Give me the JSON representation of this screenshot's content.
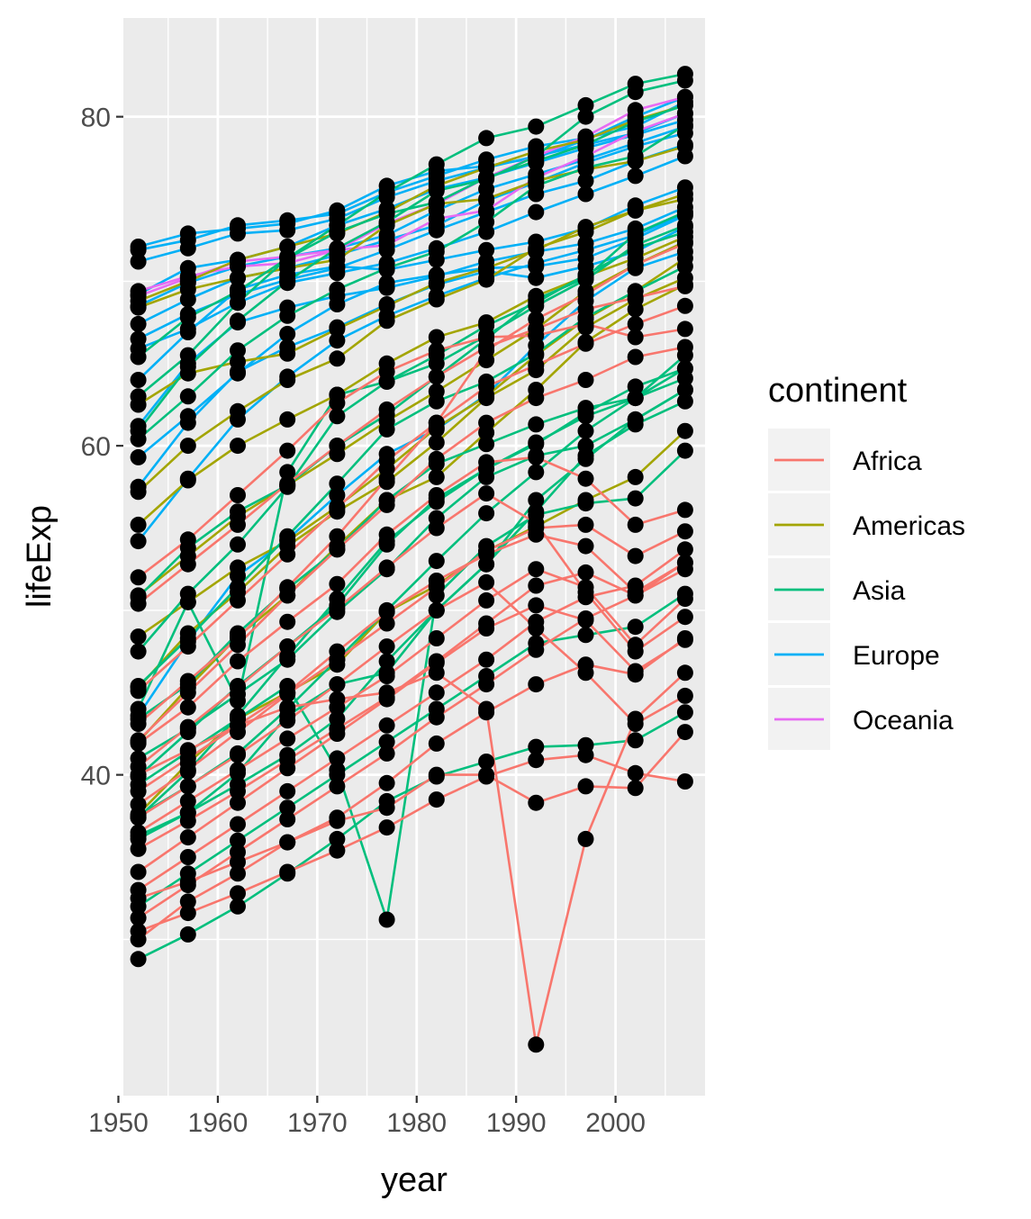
{
  "chart_data": {
    "type": "line",
    "xlabel": "year",
    "ylabel": "lifeExp",
    "xlim": [
      1950.5,
      2009
    ],
    "ylim": [
      20.5,
      86
    ],
    "x_ticks": [
      1950,
      1960,
      1970,
      1980,
      1990,
      2000
    ],
    "x_tick_labels": [
      "1950",
      "1960",
      "1970",
      "1980",
      "1990",
      "2000"
    ],
    "y_ticks": [
      40,
      60,
      80
    ],
    "y_tick_labels": [
      "40",
      "60",
      "80"
    ],
    "grid": true,
    "legend": {
      "title": "continent",
      "placement": "right",
      "entries": [
        "Africa",
        "Americas",
        "Asia",
        "Europe",
        "Oceania"
      ]
    },
    "colors": {
      "Africa": "#F8766D",
      "Americas": "#A3A500",
      "Asia": "#00BF7D",
      "Europe": "#00B0F6",
      "Oceania": "#E76BF3",
      "points": "#000000",
      "panel": "#EBEBEB",
      "grid": "#FFFFFF"
    },
    "x": [
      1952,
      1957,
      1962,
      1967,
      1972,
      1977,
      1982,
      1987,
      1992,
      1997,
      2002,
      2007
    ],
    "series": [
      {
        "continent": "Europe",
        "values": [
          72.1,
          72.9,
          73.2,
          73.5,
          74.3,
          75.8,
          76.7,
          77.0,
          77.5,
          78.6,
          80.0,
          81.2
        ]
      },
      {
        "continent": "Europe",
        "values": [
          71.9,
          72.5,
          73.4,
          73.7,
          74.1,
          75.4,
          76.4,
          77.4,
          78.2,
          78.7,
          79.4,
          80.9
        ]
      },
      {
        "continent": "Europe",
        "values": [
          71.2,
          72.0,
          72.9,
          73.1,
          73.8,
          75.1,
          76.1,
          76.9,
          77.6,
          78.3,
          79.0,
          80.2
        ]
      },
      {
        "continent": "Europe",
        "values": [
          69.2,
          70.8,
          71.3,
          72.1,
          73.4,
          74.4,
          75.6,
          76.3,
          77.2,
          78.1,
          78.9,
          79.8
        ]
      },
      {
        "continent": "Europe",
        "values": [
          68.5,
          69.9,
          70.9,
          71.5,
          72.0,
          72.8,
          74.3,
          75.6,
          76.5,
          77.4,
          78.4,
          79.4
        ]
      },
      {
        "continent": "Europe",
        "values": [
          67.4,
          68.9,
          70.2,
          70.8,
          71.6,
          72.5,
          73.4,
          74.9,
          76.0,
          77.2,
          78.2,
          79.0
        ]
      },
      {
        "continent": "Europe",
        "values": [
          66.5,
          68.0,
          69.2,
          70.1,
          70.8,
          71.9,
          73.1,
          74.2,
          75.3,
          76.1,
          77.3,
          78.3
        ]
      },
      {
        "continent": "Europe",
        "values": [
          65.9,
          67.1,
          68.7,
          69.9,
          70.5,
          71.1,
          72.0,
          73.0,
          74.2,
          75.3,
          76.4,
          77.6
        ]
      },
      {
        "continent": "Europe",
        "values": [
          64.0,
          66.9,
          69.5,
          70.4,
          70.9,
          70.7,
          71.3,
          71.9,
          72.4,
          73.2,
          74.6,
          75.7
        ]
      },
      {
        "continent": "Europe",
        "values": [
          61.2,
          65.0,
          67.5,
          68.4,
          69.1,
          69.6,
          70.3,
          71.2,
          71.8,
          72.3,
          73.2,
          74.5
        ]
      },
      {
        "continent": "Europe",
        "values": [
          59.3,
          61.8,
          64.4,
          66.8,
          68.6,
          69.9,
          70.4,
          70.8,
          70.9,
          71.4,
          72.6,
          74.0
        ]
      },
      {
        "continent": "Europe",
        "values": [
          57.5,
          61.4,
          64.5,
          66.0,
          67.2,
          68.6,
          69.8,
          70.6,
          70.2,
          70.9,
          71.8,
          73.3
        ]
      },
      {
        "continent": "Europe",
        "values": [
          54.2,
          58.0,
          61.6,
          64.2,
          66.4,
          67.9,
          69.1,
          70.2,
          71.1,
          71.9,
          72.8,
          74.1
        ]
      },
      {
        "continent": "Europe",
        "values": [
          43.6,
          48.1,
          52.1,
          54.3,
          57.0,
          59.5,
          61.0,
          63.1,
          66.1,
          68.8,
          70.8,
          71.8
        ]
      },
      {
        "continent": "Oceania",
        "values": [
          69.4,
          70.3,
          70.9,
          71.1,
          71.9,
          73.5,
          74.7,
          76.3,
          77.6,
          78.8,
          80.4,
          81.2
        ]
      },
      {
        "continent": "Oceania",
        "values": [
          69.1,
          70.2,
          71.2,
          71.5,
          71.9,
          72.2,
          73.8,
          74.3,
          76.3,
          77.6,
          79.1,
          80.2
        ]
      },
      {
        "continent": "Americas",
        "values": [
          68.8,
          70.0,
          71.3,
          72.1,
          72.9,
          74.2,
          75.8,
          76.9,
          77.9,
          78.6,
          79.8,
          80.7
        ]
      },
      {
        "continent": "Americas",
        "values": [
          68.4,
          69.5,
          70.2,
          70.8,
          71.3,
          73.4,
          74.7,
          75.0,
          76.1,
          76.8,
          77.3,
          78.2
        ]
      },
      {
        "continent": "Americas",
        "values": [
          62.5,
          64.4,
          65.1,
          65.6,
          67.1,
          68.5,
          69.9,
          70.8,
          71.9,
          73.3,
          74.3,
          75.3
        ]
      },
      {
        "continent": "Americas",
        "values": [
          57.2,
          60.0,
          62.1,
          64.0,
          65.3,
          67.6,
          68.9,
          70.1,
          72.0,
          73.0,
          74.3,
          75.0
        ]
      },
      {
        "continent": "Americas",
        "values": [
          55.2,
          57.9,
          60.0,
          61.6,
          63.1,
          65.0,
          66.6,
          67.5,
          69.1,
          70.3,
          71.4,
          72.7
        ]
      },
      {
        "continent": "Americas",
        "values": [
          50.9,
          53.3,
          55.7,
          57.6,
          59.5,
          61.5,
          63.3,
          65.2,
          67.1,
          69.4,
          71.0,
          72.4
        ]
      },
      {
        "continent": "Americas",
        "values": [
          48.4,
          50.5,
          52.6,
          54.2,
          56.3,
          58.6,
          61.1,
          63.0,
          65.5,
          67.7,
          69.4,
          71.4
        ]
      },
      {
        "continent": "Americas",
        "values": [
          45.3,
          48.6,
          51.1,
          53.9,
          56.0,
          57.8,
          60.2,
          62.9,
          64.6,
          67.2,
          68.9,
          70.2
        ]
      },
      {
        "continent": "Americas",
        "values": [
          42.0,
          45.3,
          48.4,
          50.9,
          53.9,
          56.7,
          58.1,
          60.8,
          63.4,
          66.3,
          68.3,
          69.8
        ]
      },
      {
        "continent": "Americas",
        "values": [
          37.6,
          40.7,
          43.4,
          45.0,
          46.7,
          49.9,
          51.5,
          53.6,
          55.1,
          56.7,
          58.1,
          60.9
        ]
      },
      {
        "continent": "Asia",
        "values": [
          63.0,
          65.5,
          68.7,
          71.4,
          73.4,
          75.4,
          77.1,
          78.7,
          79.4,
          80.7,
          82.0,
          82.6
        ]
      },
      {
        "continent": "Asia",
        "values": [
          60.9,
          64.8,
          67.6,
          70.0,
          72.0,
          73.6,
          75.5,
          76.2,
          77.6,
          80.0,
          81.5,
          82.2
        ]
      },
      {
        "continent": "Asia",
        "values": [
          65.4,
          67.8,
          69.4,
          71.4,
          73.0,
          74.1,
          74.8,
          76.3,
          77.3,
          78.3,
          79.7,
          80.7
        ]
      },
      {
        "continent": "Asia",
        "values": [
          60.4,
          63.0,
          65.8,
          67.9,
          69.5,
          70.8,
          71.8,
          73.6,
          75.8,
          76.9,
          77.6,
          79.5
        ]
      },
      {
        "continent": "Asia",
        "values": [
          50.8,
          53.8,
          56.0,
          57.6,
          60.0,
          61.9,
          64.2,
          66.5,
          68.9,
          70.2,
          72.9,
          74.2
        ]
      },
      {
        "continent": "Asia",
        "values": [
          47.5,
          51.0,
          54.0,
          57.5,
          61.8,
          63.9,
          65.0,
          66.7,
          68.5,
          70.1,
          72.2,
          73.4
        ]
      },
      {
        "continent": "Asia",
        "values": [
          44.0,
          50.5,
          44.5,
          58.4,
          63.1,
          63.9,
          65.5,
          67.3,
          68.7,
          70.4,
          72.0,
          73.0
        ]
      },
      {
        "continent": "Asia",
        "values": [
          45.4,
          48.3,
          51.4,
          54.5,
          57.7,
          61.0,
          62.7,
          63.9,
          65.6,
          67.8,
          69.4,
          70.9
        ]
      },
      {
        "continent": "Asia",
        "values": [
          39.9,
          42.6,
          45.4,
          47.8,
          50.3,
          54.0,
          56.8,
          58.6,
          60.1,
          62.0,
          63.6,
          64.7
        ]
      },
      {
        "continent": "Asia",
        "values": [
          37.4,
          40.2,
          43.6,
          47.2,
          50.7,
          54.2,
          56.6,
          58.6,
          60.2,
          61.8,
          62.9,
          64.7
        ]
      },
      {
        "continent": "Asia",
        "values": [
          36.3,
          37.7,
          39.4,
          41.2,
          43.4,
          46.9,
          50.0,
          52.8,
          56.0,
          59.4,
          61.3,
          62.7
        ]
      },
      {
        "continent": "Asia",
        "values": [
          36.1,
          37.7,
          40.1,
          43.6,
          45.5,
          46.2,
          50.0,
          52.8,
          56.7,
          59.2,
          61.6,
          63.4
        ]
      },
      {
        "continent": "Asia",
        "values": [
          41.0,
          42.8,
          44.9,
          47.0,
          49.9,
          52.5,
          55.6,
          58.1,
          59.4,
          60.0,
          61.6,
          63.4
        ]
      },
      {
        "continent": "Asia",
        "values": [
          43.4,
          45.5,
          48.6,
          51.3,
          53.7,
          56.7,
          58.9,
          60.1,
          61.3,
          62.3,
          62.9,
          65.5
        ]
      },
      {
        "continent": "Asia",
        "values": [
          37.5,
          39.3,
          41.3,
          44.0,
          47.0,
          50.0,
          53.0,
          55.9,
          58.4,
          60.9,
          62.9,
          64.1
        ]
      },
      {
        "continent": "Asia",
        "values": [
          39.4,
          41.4,
          43.4,
          45.4,
          40.3,
          31.2,
          50.9,
          53.9,
          55.8,
          56.5,
          56.8,
          59.7
        ]
      },
      {
        "continent": "Asia",
        "values": [
          32.0,
          34.0,
          36.0,
          38.0,
          40.0,
          42.0,
          44.0,
          46.0,
          48.0,
          48.5,
          49.0,
          51.0
        ]
      },
      {
        "continent": "Asia",
        "values": [
          28.8,
          30.3,
          32.0,
          34.0,
          36.1,
          38.4,
          39.9,
          40.8,
          41.7,
          41.8,
          42.1,
          43.8
        ]
      },
      {
        "continent": "Africa",
        "values": [
          52.0,
          54.3,
          57.0,
          59.7,
          62.6,
          64.5,
          65.8,
          66.6,
          66.7,
          67.4,
          66.6,
          67.1
        ]
      },
      {
        "continent": "Africa",
        "values": [
          50.4,
          52.8,
          55.2,
          57.7,
          60.0,
          62.2,
          64.2,
          66.0,
          67.1,
          68.3,
          69.0,
          69.7
        ]
      },
      {
        "continent": "Africa",
        "values": [
          45.1,
          47.8,
          50.6,
          53.4,
          56.2,
          59.1,
          61.4,
          63.6,
          64.9,
          66.2,
          67.4,
          68.5
        ]
      },
      {
        "continent": "Africa",
        "values": [
          42.1,
          45.0,
          47.9,
          50.9,
          53.7,
          56.4,
          59.2,
          61.4,
          62.9,
          64.0,
          65.4,
          66.0
        ]
      },
      {
        "continent": "Africa",
        "values": [
          43.1,
          45.7,
          48.3,
          51.4,
          54.5,
          58.0,
          61.4,
          65.8,
          67.7,
          69.2,
          71.0,
          72.3
        ]
      },
      {
        "continent": "Africa",
        "values": [
          41.9,
          44.1,
          46.9,
          49.3,
          51.6,
          54.6,
          57.0,
          59.0,
          59.3,
          58.0,
          55.2,
          56.1
        ]
      },
      {
        "continent": "Africa",
        "values": [
          40.5,
          42.9,
          45.3,
          47.8,
          50.1,
          52.6,
          55.0,
          57.1,
          55.3,
          51.1,
          47.5,
          49.6
        ]
      },
      {
        "continent": "Africa",
        "values": [
          39.0,
          41.0,
          43.0,
          45.0,
          47.5,
          49.9,
          51.8,
          53.4,
          54.6,
          53.9,
          51.1,
          52.9
        ]
      },
      {
        "continent": "Africa",
        "values": [
          38.2,
          40.3,
          42.6,
          44.9,
          47.0,
          49.2,
          51.4,
          53.6,
          55.0,
          55.2,
          53.3,
          54.8
        ]
      },
      {
        "continent": "Africa",
        "values": [
          37.4,
          39.3,
          41.2,
          43.3,
          45.5,
          47.8,
          50.0,
          51.7,
          48.9,
          46.2,
          43.1,
          44.8
        ]
      },
      {
        "continent": "Africa",
        "values": [
          36.5,
          38.4,
          40.3,
          42.2,
          44.1,
          46.0,
          48.3,
          50.6,
          52.5,
          51.4,
          47.9,
          50.7
        ]
      },
      {
        "continent": "Africa",
        "values": [
          35.5,
          37.2,
          39.0,
          40.9,
          42.8,
          44.7,
          46.9,
          49.2,
          51.5,
          52.3,
          50.9,
          52.5
        ]
      },
      {
        "continent": "Africa",
        "values": [
          34.1,
          36.2,
          38.3,
          40.4,
          42.5,
          44.6,
          46.8,
          48.9,
          50.3,
          49.4,
          46.3,
          48.2
        ]
      },
      {
        "continent": "Africa",
        "values": [
          33.0,
          35.0,
          37.0,
          39.0,
          41.0,
          43.0,
          45.0,
          47.0,
          49.3,
          50.8,
          51.5,
          53.7
        ]
      },
      {
        "continent": "Africa",
        "values": [
          31.3,
          33.3,
          35.3,
          37.3,
          39.3,
          41.3,
          43.5,
          45.5,
          47.6,
          49.5,
          50.9,
          52.9
        ]
      },
      {
        "continent": "Africa",
        "values": [
          30.0,
          32.3,
          34.0,
          35.9,
          37.4,
          39.5,
          41.9,
          43.8,
          45.5,
          46.7,
          46.1,
          48.3
        ]
      },
      {
        "continent": "Africa",
        "values": [
          40.0,
          41.5,
          43.0,
          44.1,
          44.6,
          45.0,
          46.2,
          44.0,
          23.6,
          36.1,
          43.4,
          46.2
        ]
      },
      {
        "continent": "Africa",
        "values": [
          32.5,
          33.5,
          34.7,
          35.9,
          37.2,
          38.0,
          40.0,
          40.0,
          38.3,
          39.3,
          39.2,
          42.6
        ]
      },
      {
        "continent": "Africa",
        "values": [
          30.5,
          31.6,
          32.8,
          34.1,
          35.4,
          36.8,
          38.5,
          39.9,
          40.9,
          41.2,
          40.1,
          39.6
        ]
      }
    ]
  }
}
